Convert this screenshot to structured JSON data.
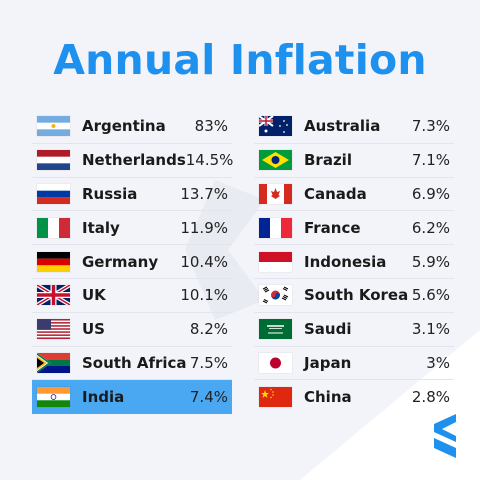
{
  "title": "Annual Inflation",
  "colors": {
    "title": "#1e90ee",
    "highlight": "#4aa8f2",
    "logo": "#1e90ee"
  },
  "left_column": [
    {
      "country": "Argentina",
      "value": "83%",
      "flag": "argentina-flag-icon"
    },
    {
      "country": "Netherlands",
      "value": "14.5%",
      "flag": "netherlands-flag-icon"
    },
    {
      "country": "Russia",
      "value": "13.7%",
      "flag": "russia-flag-icon"
    },
    {
      "country": "Italy",
      "value": "11.9%",
      "flag": "italy-flag-icon"
    },
    {
      "country": "Germany",
      "value": "10.4%",
      "flag": "germany-flag-icon"
    },
    {
      "country": "UK",
      "value": "10.1%",
      "flag": "uk-flag-icon"
    },
    {
      "country": "US",
      "value": "8.2%",
      "flag": "us-flag-icon"
    },
    {
      "country": "South Africa",
      "value": "7.5%",
      "flag": "south-africa-flag-icon"
    },
    {
      "country": "India",
      "value": "7.4%",
      "flag": "india-flag-icon",
      "highlighted": true
    }
  ],
  "right_column": [
    {
      "country": "Australia",
      "value": "7.3%",
      "flag": "australia-flag-icon"
    },
    {
      "country": "Brazil",
      "value": "7.1%",
      "flag": "brazil-flag-icon"
    },
    {
      "country": "Canada",
      "value": "6.9%",
      "flag": "canada-flag-icon"
    },
    {
      "country": "France",
      "value": "6.2%",
      "flag": "france-flag-icon"
    },
    {
      "country": "Indonesia",
      "value": "5.9%",
      "flag": "indonesia-flag-icon"
    },
    {
      "country": "South Korea",
      "value": "5.6%",
      "flag": "south-korea-flag-icon"
    },
    {
      "country": "Saudi",
      "value": "3.1%",
      "flag": "saudi-flag-icon"
    },
    {
      "country": "Japan",
      "value": "3%",
      "flag": "japan-flag-icon"
    },
    {
      "country": "China",
      "value": "2.8%",
      "flag": "china-flag-icon"
    }
  ]
}
